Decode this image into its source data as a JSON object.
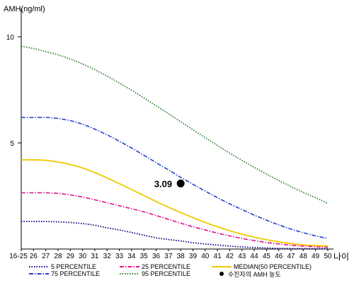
{
  "chart_data": {
    "type": "line",
    "ylabel": "AMH(ng/ml)",
    "xlabel": "나이",
    "ylim": [
      0,
      11
    ],
    "yticks": [
      5,
      10
    ],
    "categories": [
      "16-25",
      "26",
      "27",
      "28",
      "29",
      "30",
      "31",
      "32",
      "33",
      "34",
      "35",
      "36",
      "37",
      "38",
      "39",
      "40",
      "41",
      "42",
      "43",
      "44",
      "45",
      "46",
      "47",
      "48",
      "49",
      "50"
    ],
    "series": [
      {
        "name": "5 PERCENTILE",
        "color": "#000080",
        "style": "dotted",
        "values": [
          1.3,
          1.3,
          1.3,
          1.28,
          1.25,
          1.2,
          1.12,
          1.0,
          0.9,
          0.78,
          0.65,
          0.53,
          0.45,
          0.38,
          0.3,
          0.24,
          0.19,
          0.14,
          0.1,
          0.07,
          0.05,
          0.03,
          0.02,
          0.02,
          0.02,
          0.02
        ]
      },
      {
        "name": "25 PERCENTILE",
        "color": "#e0118f",
        "style": "dashdot",
        "values": [
          2.65,
          2.65,
          2.65,
          2.62,
          2.55,
          2.45,
          2.32,
          2.18,
          2.04,
          1.9,
          1.75,
          1.58,
          1.4,
          1.22,
          1.05,
          0.9,
          0.75,
          0.62,
          0.5,
          0.4,
          0.31,
          0.24,
          0.18,
          0.14,
          0.11,
          0.09
        ]
      },
      {
        "name": "MEDIAN(50 PERCENTILE)",
        "color": "#f0c800",
        "style": "solid",
        "values": [
          4.2,
          4.2,
          4.18,
          4.1,
          3.98,
          3.82,
          3.6,
          3.35,
          3.08,
          2.8,
          2.52,
          2.24,
          1.97,
          1.72,
          1.48,
          1.25,
          1.05,
          0.86,
          0.7,
          0.56,
          0.44,
          0.34,
          0.26,
          0.2,
          0.16,
          0.14
        ]
      },
      {
        "name": "75 PERCENTILE",
        "color": "#2244cc",
        "style": "dashdot",
        "values": [
          6.2,
          6.2,
          6.2,
          6.15,
          6.05,
          5.88,
          5.65,
          5.38,
          5.08,
          4.76,
          4.42,
          4.07,
          3.73,
          3.38,
          3.05,
          2.73,
          2.42,
          2.13,
          1.86,
          1.6,
          1.36,
          1.14,
          0.94,
          0.77,
          0.62,
          0.5
        ]
      },
      {
        "name": "95 PERCENTILE",
        "color": "#2e7d32",
        "style": "dotted",
        "values": [
          9.55,
          9.45,
          9.3,
          9.15,
          8.95,
          8.72,
          8.45,
          8.15,
          7.82,
          7.48,
          7.12,
          6.75,
          6.38,
          6.0,
          5.62,
          5.25,
          4.88,
          4.52,
          4.18,
          3.85,
          3.53,
          3.23,
          2.94,
          2.67,
          2.42,
          2.15
        ]
      }
    ],
    "point": {
      "label": "수진자의 AMH 농도",
      "x": "38",
      "y": 3.09,
      "value_label": "3.09"
    },
    "legend_position": "bottom",
    "grid": false
  }
}
